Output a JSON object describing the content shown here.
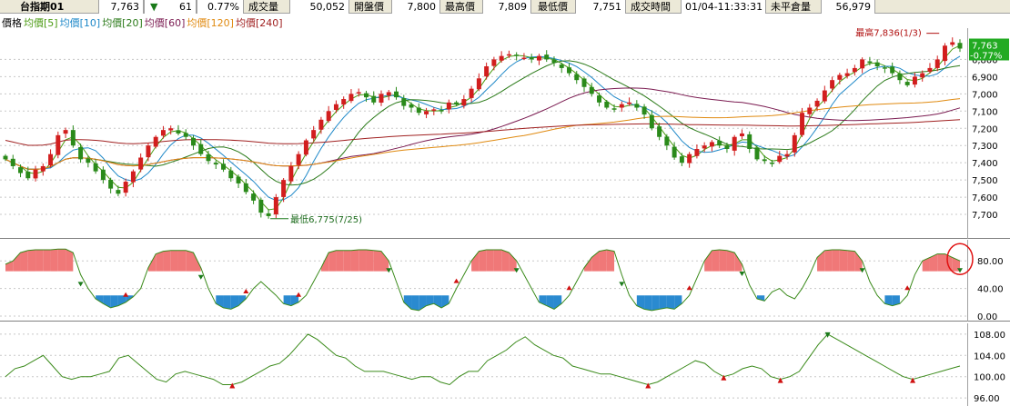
{
  "header": {
    "symbol": "台指期01",
    "price": "7,763",
    "change_arrow": "▼",
    "change": "61",
    "change_pct": "0.77%",
    "volume_label": "成交量",
    "volume": "50,052",
    "open_label": "開盤價",
    "open": "7,800",
    "high_label": "最高價",
    "high": "7,809",
    "low_label": "最低價",
    "low": "7,751",
    "time_label": "成交時間",
    "time": "01/04-11:33:31",
    "oi_label": "未平倉量",
    "oi": "56,979"
  },
  "legend": [
    {
      "label": "價格",
      "color": "#000000"
    },
    {
      "label": "均價[5]",
      "color": "#4a9a10"
    },
    {
      "label": "均價[10]",
      "color": "#1e88c8"
    },
    {
      "label": "均價[20]",
      "color": "#2a7a18"
    },
    {
      "label": "均價[60]",
      "color": "#7a1a50"
    },
    {
      "label": "均價[120]",
      "color": "#e08a10"
    },
    {
      "label": "均價[240]",
      "color": "#a02020"
    }
  ],
  "price_panel": {
    "y_ticks": [
      "7,700",
      "7,600",
      "7,500",
      "7,400",
      "7,300",
      "7,200",
      "7,100",
      "7,000",
      "6,900",
      "6,800"
    ],
    "last_price_tag": "7,763",
    "last_change_tag": "-0.77%",
    "high_annotation": "最高7,836(1/3)",
    "low_annotation": "最低6,775(7/25)"
  },
  "osc_panel": {
    "y_ticks": [
      "80.00",
      "40.00",
      "0.00"
    ]
  },
  "bottom_panel": {
    "y_ticks": [
      "108.00",
      "104.00",
      "100.00",
      "96.00"
    ]
  },
  "colors": {
    "up": "#d21e1e",
    "down": "#2a8a1a",
    "osc_fill_high": "#f07878",
    "osc_fill_low": "#2a8ad0",
    "osc_line": "#3a8a1a",
    "highlight_circle": "#e01010",
    "tag_bg": "#22aa22"
  },
  "chart_data": [
    {
      "type": "candlestick",
      "title": "",
      "ylim": [
        6700,
        7850
      ],
      "y_ticks": [
        6800,
        6900,
        7000,
        7100,
        7200,
        7300,
        7400,
        7500,
        7600,
        7700
      ],
      "series": [
        {
          "name": "價格",
          "close": [
            7120,
            7080,
            7040,
            7010,
            7060,
            7080,
            7150,
            7260,
            7290,
            7200,
            7120,
            7100,
            7050,
            7000,
            6950,
            6920,
            6990,
            7050,
            7130,
            7200,
            7250,
            7290,
            7300,
            7270,
            7250,
            7200,
            7150,
            7110,
            7090,
            7060,
            7010,
            6980,
            6930,
            6880,
            6810,
            6790,
            6900,
            7000,
            7080,
            7150,
            7230,
            7290,
            7350,
            7400,
            7440,
            7470,
            7500,
            7510,
            7480,
            7450,
            7500,
            7510,
            7480,
            7430,
            7420,
            7390,
            7400,
            7410,
            7400,
            7450,
            7440,
            7470,
            7530,
            7590,
            7660,
            7700,
            7720,
            7730,
            7720,
            7710,
            7700,
            7720,
            7700,
            7680,
            7650,
            7620,
            7580,
            7540,
            7500,
            7450,
            7420,
            7410,
            7440,
            7450,
            7420,
            7380,
            7300,
            7250,
            7200,
            7130,
            7100,
            7150,
            7180,
            7200,
            7220,
            7200,
            7180,
            7250,
            7270,
            7180,
            7120,
            7110,
            7100,
            7140,
            7150,
            7260,
            7390,
            7420,
            7460,
            7520,
            7580,
            7610,
            7620,
            7650,
            7700,
            7680,
            7660,
            7650,
            7620,
            7580,
            7550,
            7600,
            7620,
            7650,
            7700,
            7780,
            7800,
            7763
          ]
        },
        {
          "name": "均價[5]",
          "values": []
        },
        {
          "name": "均價[10]",
          "values": []
        },
        {
          "name": "均價[20]",
          "values": []
        },
        {
          "name": "均價[60]",
          "values": []
        },
        {
          "name": "均價[120]",
          "values": []
        }
      ],
      "annotations": [
        {
          "text": "最高7,836(1/3)",
          "value": 7836
        },
        {
          "text": "最低6,775(7/25)",
          "value": 6775
        }
      ]
    },
    {
      "type": "area",
      "title": "",
      "ylim": [
        0,
        100
      ],
      "y_ticks": [
        0,
        40,
        80
      ],
      "threshold": 65,
      "values": [
        75,
        80,
        92,
        95,
        96,
        96,
        96,
        97,
        97,
        92,
        60,
        40,
        25,
        18,
        12,
        15,
        20,
        28,
        40,
        70,
        90,
        94,
        95,
        95,
        95,
        92,
        70,
        40,
        18,
        12,
        10,
        15,
        25,
        40,
        50,
        40,
        30,
        18,
        15,
        20,
        30,
        50,
        70,
        92,
        95,
        95,
        95,
        96,
        96,
        95,
        94,
        80,
        50,
        20,
        10,
        8,
        15,
        18,
        12,
        18,
        40,
        60,
        80,
        94,
        96,
        96,
        96,
        92,
        80,
        60,
        40,
        20,
        15,
        10,
        18,
        30,
        50,
        70,
        85,
        94,
        96,
        94,
        60,
        30,
        15,
        10,
        8,
        10,
        12,
        10,
        18,
        30,
        55,
        80,
        95,
        96,
        95,
        92,
        75,
        45,
        25,
        22,
        35,
        40,
        30,
        25,
        40,
        60,
        85,
        95,
        96,
        96,
        95,
        94,
        80,
        50,
        30,
        18,
        15,
        18,
        30,
        60,
        80,
        85,
        90,
        90,
        85,
        80
      ]
    },
    {
      "type": "line",
      "title": "",
      "ylim": [
        95,
        109
      ],
      "y_ticks": [
        96,
        100,
        104,
        108
      ],
      "values": [
        100,
        101.5,
        102,
        103,
        104,
        102,
        100,
        99.5,
        100,
        100,
        100.5,
        101,
        103.5,
        104,
        102.5,
        101,
        99.5,
        99,
        100.5,
        101,
        100.5,
        100,
        99.5,
        98.5,
        98.5,
        99,
        100,
        101,
        102,
        102.5,
        104,
        106,
        108,
        107,
        105.5,
        104,
        103.5,
        102,
        101,
        101,
        101,
        100.5,
        100,
        99.5,
        100,
        100,
        99,
        98.5,
        100,
        101,
        101,
        103,
        104,
        105,
        106.5,
        107.5,
        106,
        105,
        104,
        103.5,
        102,
        101.5,
        101,
        100.5,
        100.5,
        100,
        99.5,
        99,
        98.5,
        99,
        100,
        101,
        102,
        103,
        102.5,
        101,
        100,
        100.5,
        101.5,
        102,
        101.5,
        100,
        99.5,
        100,
        101,
        103.5,
        106,
        108,
        107,
        106,
        105,
        104,
        103,
        102,
        101,
        100,
        99.5,
        100,
        100.5,
        101,
        101.5,
        102
      ]
    }
  ]
}
